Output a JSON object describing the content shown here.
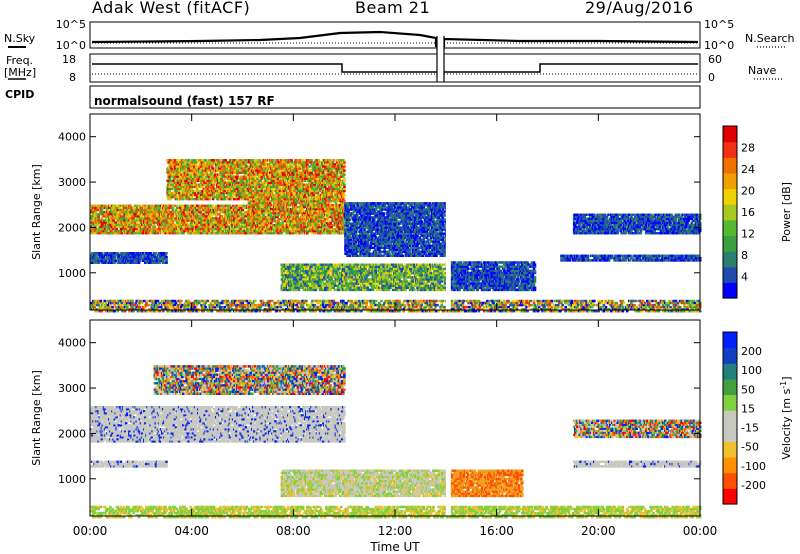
{
  "header": {
    "radar": "Adak West (fitACF)",
    "beam": "Beam 21",
    "date": "29/Aug/2016"
  },
  "strips": {
    "nsky_label": "N.Sky",
    "nsky_ticks": [
      "10^5",
      "10^0"
    ],
    "nsearch_label": "N.Search",
    "nsearch_ticks": [
      "10^5",
      "10^0"
    ],
    "freq_label": "Freq.",
    "freq_unit": "[MHz]",
    "freq_ticks": [
      "18",
      "8"
    ],
    "nave_label": "Nave",
    "nave_ticks": [
      "60",
      "0"
    ],
    "cpid_label": "CPID",
    "cpid_text": "normalsound (fast) 157 RF"
  },
  "chart_data": [
    {
      "type": "heatmap",
      "title": "",
      "xlabel": "",
      "ylabel": "Slant Range [km]",
      "xlim": [
        "00:00",
        "00:00"
      ],
      "ylim": [
        180,
        4500
      ],
      "yticks": [
        "1000",
        "2000",
        "3000",
        "4000"
      ],
      "colorbar": {
        "label": "Power [dB]",
        "range": [
          0,
          30
        ],
        "ticks": [
          "4",
          "8",
          "12",
          "16",
          "20",
          "24",
          "28"
        ],
        "colors": [
          "#0000ff",
          "#1f4bb0",
          "#2a7f6f",
          "#3aa040",
          "#55b830",
          "#a8c820",
          "#f0d000",
          "#f0a000",
          "#f07000",
          "#f03010",
          "#e00000"
        ]
      },
      "regions": [
        {
          "t0": 0.0,
          "t1": 6.8,
          "r0": 1900,
          "r1": 2550,
          "level": "high"
        },
        {
          "t0": 6.2,
          "t1": 10.0,
          "r0": 1900,
          "r1": 2650,
          "level": "high"
        },
        {
          "t0": 3.0,
          "t1": 10.0,
          "r0": 2650,
          "r1": 3550,
          "level": "high"
        },
        {
          "t0": 0.0,
          "t1": 3.0,
          "r0": 1250,
          "r1": 1500,
          "level": "low"
        },
        {
          "t0": 7.5,
          "t1": 14.0,
          "r0": 650,
          "r1": 1250,
          "level": "mid"
        },
        {
          "t0": 14.0,
          "t1": 17.5,
          "r0": 650,
          "r1": 1300,
          "level": "low"
        },
        {
          "t0": 10.0,
          "t1": 14.0,
          "r0": 1400,
          "r1": 2600,
          "level": "low"
        },
        {
          "t0": 18.5,
          "t1": 24.0,
          "r0": 1300,
          "r1": 1450,
          "level": "low"
        },
        {
          "t0": 19.0,
          "t1": 24.0,
          "r0": 1900,
          "r1": 2350,
          "level": "low"
        },
        {
          "t0": 0.0,
          "t1": 24.0,
          "r0": 180,
          "r1": 450,
          "level": "ground"
        }
      ]
    },
    {
      "type": "heatmap",
      "title": "",
      "xlabel": "Time UT",
      "ylabel": "Slant Range [km]",
      "xticks": [
        "00:00",
        "04:00",
        "08:00",
        "12:00",
        "16:00",
        "20:00",
        "00:00"
      ],
      "ylim": [
        180,
        4500
      ],
      "yticks": [
        "1000",
        "2000",
        "3000",
        "4000"
      ],
      "colorbar": {
        "label": "Velocity [m s",
        "label_superscript": "-1",
        "label_end": "]",
        "range": [
          -250,
          250
        ],
        "ticks": [
          "200",
          "100",
          "50",
          "15",
          "-15",
          "-50",
          "-100",
          "-200"
        ],
        "colors": [
          "#ff0000",
          "#ff5000",
          "#ff9000",
          "#f0c030",
          "#c8c8c0",
          "#c8c8c0",
          "#80d040",
          "#40a040",
          "#208080",
          "#1040c0",
          "#0020ff"
        ]
      },
      "regions": [
        {
          "t0": 0.0,
          "t1": 10.0,
          "r0": 1850,
          "r1": 2650,
          "level": "near-zero"
        },
        {
          "t0": 2.5,
          "t1": 10.0,
          "r0": 2900,
          "r1": 3550,
          "level": "mixed"
        },
        {
          "t0": 7.5,
          "t1": 14.0,
          "r0": 650,
          "r1": 1250,
          "level": "slow"
        },
        {
          "t0": 14.0,
          "t1": 17.0,
          "r0": 650,
          "r1": 1250,
          "level": "away"
        },
        {
          "t0": 0.0,
          "t1": 3.0,
          "r0": 1300,
          "r1": 1450,
          "level": "near-zero"
        },
        {
          "t0": 19.0,
          "t1": 24.0,
          "r0": 1300,
          "r1": 1450,
          "level": "near-zero"
        },
        {
          "t0": 19.0,
          "t1": 24.0,
          "r0": 1950,
          "r1": 2350,
          "level": "mixed"
        },
        {
          "t0": 0.0,
          "t1": 24.0,
          "r0": 180,
          "r1": 450,
          "level": "ground"
        }
      ]
    }
  ]
}
